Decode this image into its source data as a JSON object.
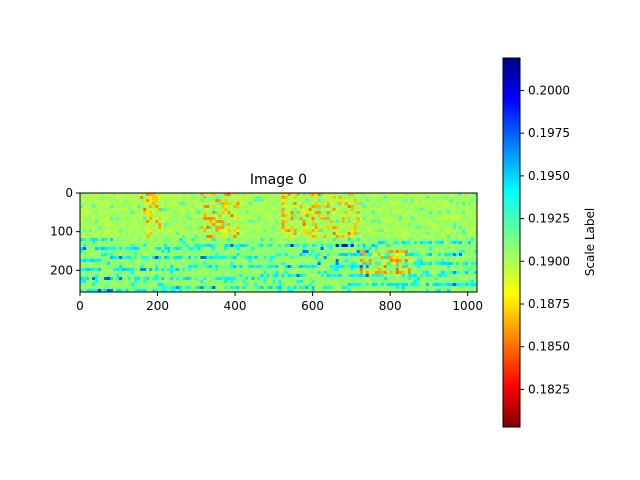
{
  "chart_data": {
    "type": "heatmap",
    "title": "Image 0",
    "xlabel": "",
    "ylabel": "",
    "xlim": [
      0,
      1024
    ],
    "ylim": [
      256,
      0
    ],
    "x_ticks": [
      0,
      200,
      400,
      600,
      800,
      1000
    ],
    "y_ticks": [
      0,
      100,
      200
    ],
    "grid": false,
    "colormap": "jet",
    "colorbar": {
      "label": "Scale Label",
      "range": [
        0.1803,
        0.2019
      ],
      "ticks": [
        "0.1825",
        "0.1850",
        "0.1875",
        "0.1900",
        "0.1925",
        "0.1950",
        "0.1975",
        "0.2000"
      ],
      "tick_values": [
        0.1825,
        0.185,
        0.1875,
        0.19,
        0.1925,
        0.195,
        0.1975,
        0.2
      ]
    },
    "image_size": [
      1024,
      256
    ]
  }
}
